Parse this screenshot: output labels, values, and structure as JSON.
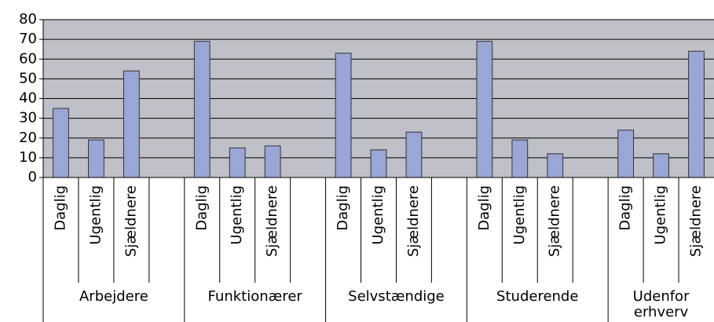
{
  "chart_data": {
    "type": "bar",
    "color": "#9aa6d6",
    "plot_background": "#c0c0c8",
    "ylim": [
      0,
      80
    ],
    "yticks": [
      0,
      10,
      20,
      30,
      40,
      50,
      60,
      70,
      80
    ],
    "grid": true,
    "groups": [
      {
        "name": "Arbejdere",
        "categories": [
          "Daglig",
          "Ugentlig",
          "Sjældnere"
        ],
        "values": [
          35,
          19,
          54
        ]
      },
      {
        "name": "Funktionærer",
        "categories": [
          "Daglig",
          "Ugentlig",
          "Sjældnere"
        ],
        "values": [
          69,
          15,
          16
        ]
      },
      {
        "name": "Selvstændige",
        "categories": [
          "Daglig",
          "Ugentlig",
          "Sjældnere"
        ],
        "values": [
          63,
          14,
          23
        ]
      },
      {
        "name": "Studerende",
        "categories": [
          "Daglig",
          "Ugentlig",
          "Sjældnere"
        ],
        "values": [
          69,
          19,
          12
        ]
      },
      {
        "name": "Udenfor erhverv",
        "categories": [
          "Daglig",
          "Ugentlig",
          "Sjældnere"
        ],
        "values": [
          24,
          12,
          64
        ]
      }
    ]
  }
}
